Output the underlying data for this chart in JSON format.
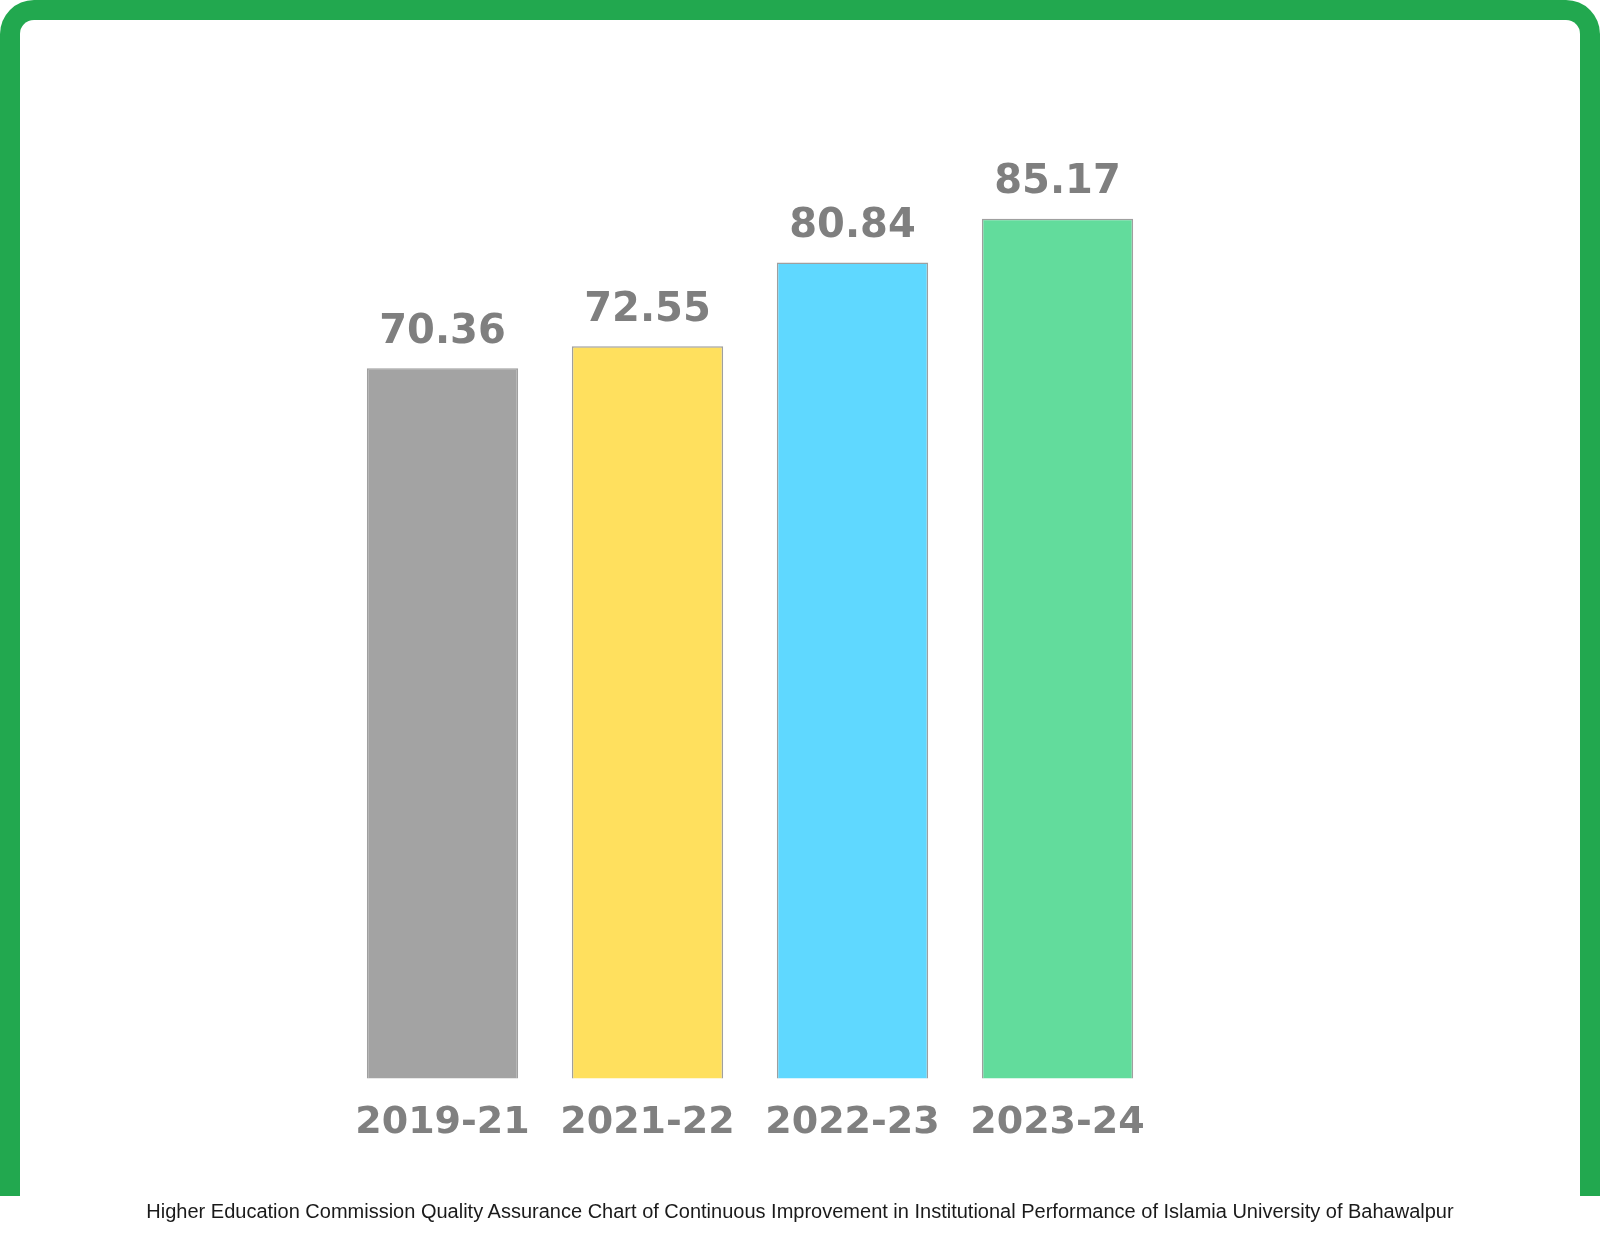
{
  "chart_data": {
    "type": "bar",
    "categories": [
      "2019-21",
      "2021-22",
      "2022-23",
      "2023-24"
    ],
    "values": [
      70.36,
      72.55,
      80.84,
      85.17
    ],
    "colors": [
      "#a3a3a3",
      "#ffe05e",
      "#5fd8ff",
      "#62dc9c"
    ],
    "data_labels": true,
    "tick_labels": "x",
    "annotations": [
      "Higher Education Commission Quality Assurance Chart of Continuous Improvement in Institutional Performance of Islamia University of Bahawalpur"
    ]
  }
}
